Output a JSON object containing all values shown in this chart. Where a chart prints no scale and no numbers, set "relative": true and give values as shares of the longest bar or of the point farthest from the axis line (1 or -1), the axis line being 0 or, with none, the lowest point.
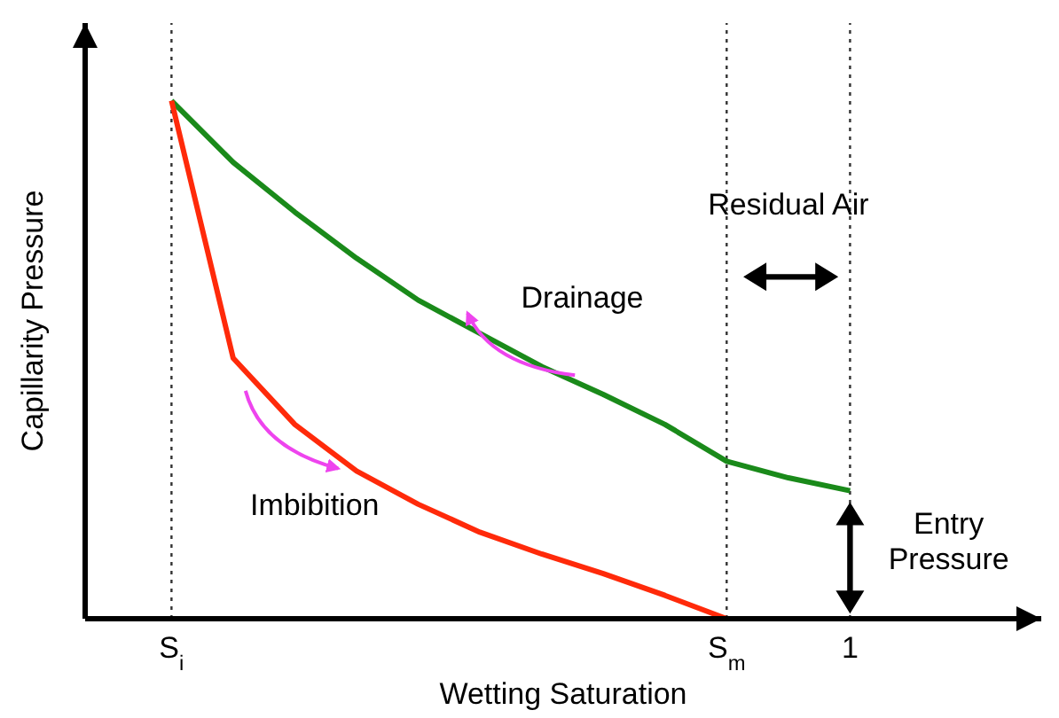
{
  "chart_data": {
    "type": "line",
    "relative": true,
    "xlabel": "Wetting Saturation",
    "ylabel": "Capillarity Pressure",
    "categories": [
      null,
      "S$_{i}$",
      null,
      null,
      null,
      null,
      null,
      null,
      null,
      null,
      "S$_{m}$",
      null,
      "1",
      null,
      null,
      null
    ],
    "series": [
      {
        "color": "#1a8a1a",
        "values": [
          null,
          1,
          0.881,
          0.785,
          0.696,
          0.615,
          0.551,
          0.487,
          0.433,
          0.375,
          0.304,
          0.272,
          0.247,
          null,
          null,
          null
        ]
      },
      {
        "color": "#ff2a0a",
        "values": [
          null,
          1,
          0.503,
          0.375,
          0.285,
          0.221,
          0.167,
          0.125,
          0.087,
          0.045,
          0,
          null,
          null,
          null,
          null,
          null
        ]
      }
    ],
    "ref_lines": [
      {
        "axis": "x",
        "value": "S$_{i}$",
        "line_style": "dotted"
      },
      {
        "axis": "x",
        "value": "S$_{m}$",
        "line_style": "dotted"
      },
      {
        "axis": "x",
        "value": "1",
        "line_style": "dotted"
      }
    ],
    "annotations": [
      "Drainage",
      "Imbibition",
      "Residual Air",
      "Entry Pressure"
    ],
    "marker": "none",
    "line_style": "solid"
  }
}
